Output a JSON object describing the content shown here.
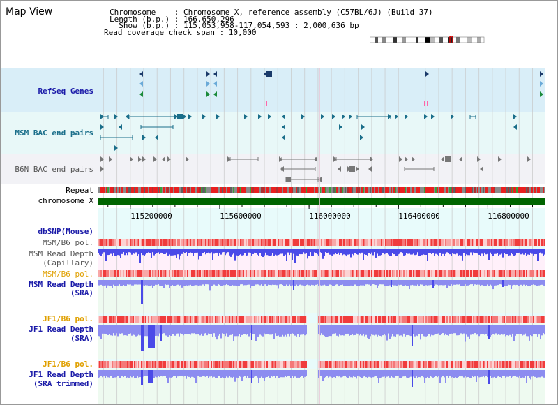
{
  "page": {
    "title": "Map View"
  },
  "info": {
    "chromosome": "Chromosome    : Chromosome X, reference assembly (C57BL/6J) (Build 37)",
    "length": "Length (b.p.) : 166,650,296",
    "show": "  Show (b.p.) : 115,053,958-117,054,593 : 2,000,636 bp",
    "span": "Read coverage check span : 10,000"
  },
  "view": {
    "start": 115053958,
    "end": 117054593
  },
  "ruler": {
    "ticks": [
      115200000,
      115600000,
      116000000,
      116400000,
      116800000
    ],
    "tick_labels": [
      "115200000",
      "115600000",
      "116000000",
      "116400000",
      "116800000"
    ]
  },
  "tracks": {
    "refseq": {
      "label": "RefSeq Genes",
      "color": "#1a1aa8",
      "bg": "#d9eef8"
    },
    "msm_bac": {
      "label": "MSM BAC end pairs",
      "color": "#1a6e8a",
      "bg": "#e8f8f8"
    },
    "b6n_bac": {
      "label": "B6N BAC end pairs",
      "color": "#555555",
      "bg": "#f2f2f6"
    },
    "repeat": {
      "label": "Repeat",
      "color": "#000000"
    },
    "chromosome": {
      "label": "chromosome X",
      "color": "#000000",
      "bar_color": "#006400"
    },
    "dbsnp": {
      "label": "dbSNP(Mouse)",
      "color": "#1a1aa8"
    },
    "msm_b6_pol_1": {
      "label": "MSM/B6 pol.",
      "color": "#555555"
    },
    "msm_depth_cap": {
      "label": "MSM Read Depth",
      "label2": "(Capillary)",
      "color": "#555555",
      "bg": "#fff0fa"
    },
    "msm_b6_pol_2": {
      "label": "MSM/B6 pol.",
      "color": "#e0a000"
    },
    "msm_depth_sra": {
      "label": "MSM Read Depth",
      "label2": "(SRA)",
      "color": "#1a1aa8",
      "bg": "#eefaf0"
    },
    "jf1_b6_pol_1": {
      "label": "JF1/B6 pol.",
      "color": "#e0a000"
    },
    "jf1_depth_sra": {
      "label": "JF1 Read Depth",
      "label2": "(SRA)",
      "color": "#1a1aa8",
      "bg": "#eefaf0"
    },
    "jf1_b6_pol_2": {
      "label": "JF1/B6 pol.",
      "color": "#e0a000"
    },
    "jf1_depth_trim": {
      "label": "JF1 Read Depth",
      "label2": "(SRA trimmed)",
      "color": "#1a1aa8",
      "bg": "#eefaf0"
    }
  },
  "colors": {
    "depth": "#4a4ae8",
    "depth_light": "#8c8cf0",
    "pol": "#f05050",
    "pol_light": "#f8c8c8",
    "grid": "#c8c8c8"
  }
}
